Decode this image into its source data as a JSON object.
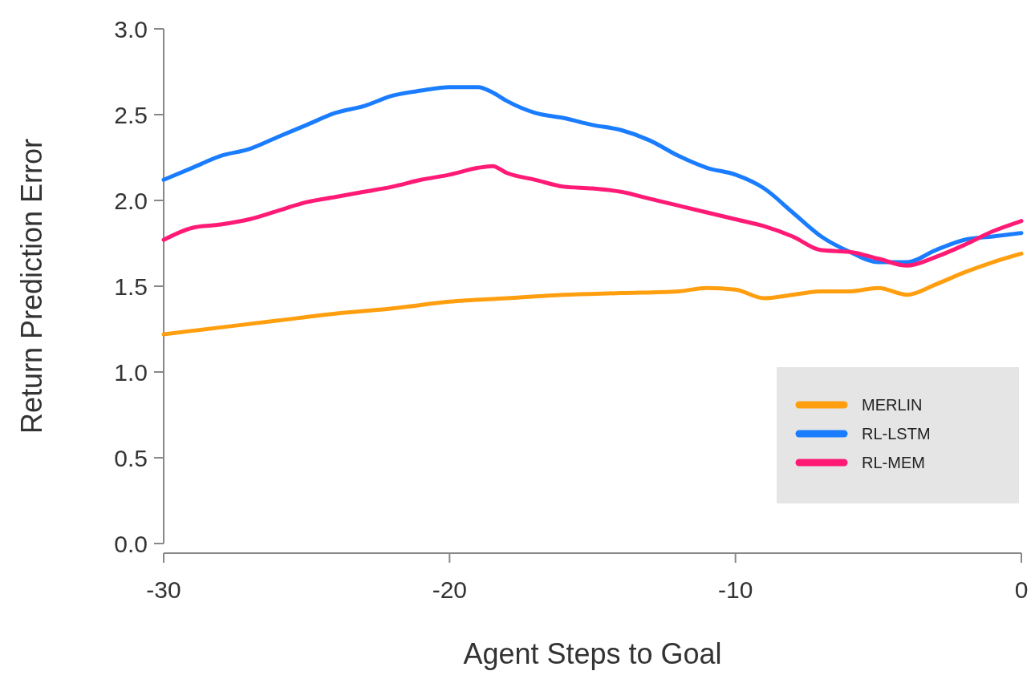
{
  "chart_data": {
    "type": "line",
    "xlabel": "Agent Steps to Goal",
    "ylabel": "Return Prediction Error",
    "xlim": [
      -30,
      0
    ],
    "xticks": [
      -30,
      -20,
      -10,
      0
    ],
    "ylim": [
      0,
      3
    ],
    "yticks": [
      {
        "value": 0,
        "label": "0.0"
      },
      {
        "value": 0.5,
        "label": "0.5"
      },
      {
        "value": 1,
        "label": "1.0"
      },
      {
        "value": 1.5,
        "label": "1.5"
      },
      {
        "value": 2,
        "label": "2.0"
      },
      {
        "value": 2.5,
        "label": "2.5"
      },
      {
        "value": 3,
        "label": "3.0"
      }
    ],
    "grid": false,
    "legend": "bottom right",
    "marker": "none",
    "line_style": "solid",
    "series": [
      {
        "name": "MERLIN",
        "color": "#ff9f0f",
        "x": [
          -30,
          -28,
          -26,
          -24,
          -22,
          -20,
          -18,
          -16,
          -14,
          -12,
          -11,
          -10,
          -9,
          -8,
          -7,
          -6,
          -5,
          -4,
          -3,
          -2,
          -1,
          0
        ],
        "values": [
          1.22,
          1.26,
          1.3,
          1.34,
          1.37,
          1.41,
          1.43,
          1.45,
          1.46,
          1.47,
          1.49,
          1.48,
          1.43,
          1.45,
          1.47,
          1.47,
          1.49,
          1.45,
          1.51,
          1.58,
          1.64,
          1.69
        ]
      },
      {
        "name": "RL-LSTM",
        "color": "#1a7cff",
        "x": [
          -30,
          -29,
          -28,
          -27,
          -26,
          -25,
          -24,
          -23,
          -22,
          -21,
          -20,
          -19,
          -18.5,
          -18,
          -17,
          -16,
          -15,
          -14,
          -13,
          -12,
          -11,
          -10,
          -9,
          -8,
          -7,
          -6,
          -5,
          -4,
          -3,
          -2,
          -1,
          0
        ],
        "values": [
          2.12,
          2.19,
          2.26,
          2.3,
          2.37,
          2.44,
          2.51,
          2.55,
          2.61,
          2.64,
          2.66,
          2.66,
          2.63,
          2.58,
          2.51,
          2.48,
          2.44,
          2.41,
          2.35,
          2.26,
          2.19,
          2.15,
          2.07,
          1.93,
          1.79,
          1.7,
          1.64,
          1.64,
          1.71,
          1.77,
          1.79,
          1.81
        ]
      },
      {
        "name": "RL-MEM",
        "color": "#ff1a75",
        "x": [
          -30,
          -29,
          -28,
          -27,
          -26,
          -25,
          -24,
          -23,
          -22,
          -21,
          -20,
          -19,
          -18.5,
          -18,
          -17,
          -16,
          -15,
          -14,
          -13,
          -12,
          -11,
          -10,
          -9,
          -8,
          -7,
          -6,
          -5,
          -4,
          -3,
          -2,
          -1,
          0
        ],
        "values": [
          1.77,
          1.84,
          1.86,
          1.89,
          1.94,
          1.99,
          2.02,
          2.05,
          2.08,
          2.12,
          2.15,
          2.19,
          2.2,
          2.16,
          2.12,
          2.08,
          2.07,
          2.05,
          2.01,
          1.97,
          1.93,
          1.89,
          1.85,
          1.79,
          1.71,
          1.7,
          1.66,
          1.62,
          1.67,
          1.74,
          1.82,
          1.88
        ]
      }
    ]
  }
}
